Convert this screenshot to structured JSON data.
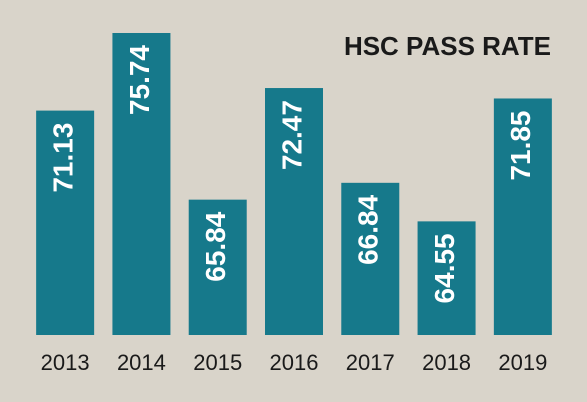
{
  "chart_data": {
    "type": "bar",
    "title": "HSC PASS RATE",
    "categories": [
      "2013",
      "2014",
      "2015",
      "2016",
      "2017",
      "2018",
      "2019"
    ],
    "values": [
      71.13,
      75.74,
      65.84,
      72.47,
      66.84,
      64.55,
      71.85
    ],
    "color": "#16798b",
    "ylim": [
      57.8,
      77.7
    ]
  }
}
